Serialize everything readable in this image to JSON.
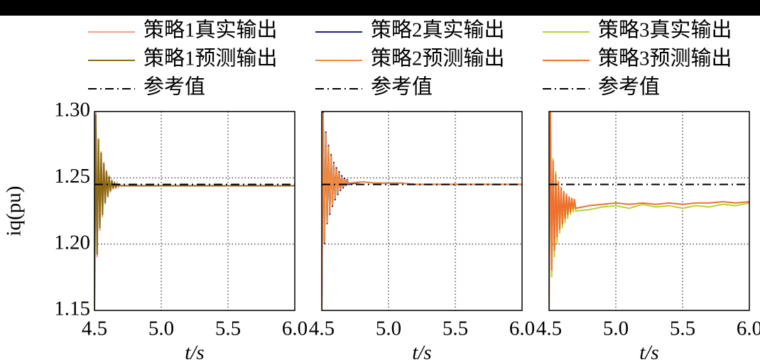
{
  "chart_data": [
    {
      "type": "line",
      "xlabel": "t/s",
      "ylabel": "iq(pu)",
      "x": [
        4.5,
        4.51,
        4.52,
        4.53,
        4.54,
        4.55,
        4.56,
        4.57,
        4.58,
        4.59,
        4.6,
        4.61,
        4.62,
        4.63,
        4.64,
        4.65,
        4.66,
        4.67,
        4.68,
        4.69,
        4.7,
        4.8,
        4.9,
        5.0,
        5.1,
        5.2,
        5.3,
        5.4,
        5.5,
        5.6,
        5.7,
        5.8,
        5.9,
        6.0
      ],
      "series": [
        {
          "name": "策略1真实输出",
          "color": "#f4a090",
          "values": [
            1.15,
            1.3,
            1.19,
            1.28,
            1.21,
            1.27,
            1.22,
            1.262,
            1.23,
            1.256,
            1.235,
            1.252,
            1.239,
            1.249,
            1.241,
            1.247,
            1.242,
            1.246,
            1.243,
            1.245,
            1.244,
            1.244,
            1.244,
            1.244,
            1.244,
            1.244,
            1.244,
            1.244,
            1.244,
            1.244,
            1.244,
            1.244,
            1.244,
            1.244
          ]
        },
        {
          "name": "策略1预测输出",
          "color": "#8b6914",
          "values": [
            1.15,
            1.298,
            1.192,
            1.279,
            1.212,
            1.269,
            1.222,
            1.261,
            1.231,
            1.255,
            1.236,
            1.251,
            1.24,
            1.248,
            1.242,
            1.246,
            1.243,
            1.245,
            1.244,
            1.245,
            1.244,
            1.244,
            1.244,
            1.244,
            1.244,
            1.244,
            1.244,
            1.244,
            1.244,
            1.244,
            1.244,
            1.244,
            1.244,
            1.244
          ]
        }
      ],
      "reference": {
        "name": "参考值",
        "value": 1.245,
        "color": "#000000"
      },
      "xlim": [
        4.5,
        6.0
      ],
      "xticks": [
        4.5,
        {
          "value": 5.0,
          "label": "5.0"
        },
        5.5,
        {
          "value": 6.0,
          "label": "6.0"
        }
      ],
      "ylim": [
        1.15,
        1.3
      ],
      "yticks": [
        1.15,
        {
          "value": 1.2,
          "label": "1.20"
        },
        1.25,
        {
          "value": 1.3,
          "label": "1.30"
        }
      ],
      "grid": true
    },
    {
      "type": "line",
      "xlabel": "t/s",
      "x": [
        4.5,
        4.51,
        4.52,
        4.53,
        4.54,
        4.55,
        4.56,
        4.57,
        4.58,
        4.59,
        4.6,
        4.61,
        4.62,
        4.63,
        4.64,
        4.65,
        4.66,
        4.67,
        4.68,
        4.69,
        4.7,
        4.8,
        4.9,
        5.0,
        5.1,
        5.2,
        5.3,
        5.4,
        5.5,
        5.6,
        5.7,
        5.8,
        5.9,
        6.0
      ],
      "series": [
        {
          "name": "策略2真实输出",
          "color": "#1a237e",
          "values": [
            1.15,
            1.3,
            1.2,
            1.285,
            1.215,
            1.275,
            1.222,
            1.268,
            1.228,
            1.262,
            1.233,
            1.258,
            1.237,
            1.255,
            1.24,
            1.252,
            1.242,
            1.25,
            1.244,
            1.249,
            1.245,
            1.247,
            1.246,
            1.246,
            1.246,
            1.245,
            1.245,
            1.245,
            1.245,
            1.245,
            1.245,
            1.245,
            1.245,
            1.245
          ]
        },
        {
          "name": "策略2预测输出",
          "color": "#f08a40",
          "values": [
            1.15,
            1.299,
            1.201,
            1.284,
            1.216,
            1.274,
            1.223,
            1.267,
            1.229,
            1.261,
            1.234,
            1.257,
            1.238,
            1.254,
            1.241,
            1.251,
            1.243,
            1.249,
            1.245,
            1.248,
            1.246,
            1.247,
            1.246,
            1.246,
            1.246,
            1.245,
            1.245,
            1.245,
            1.245,
            1.245,
            1.245,
            1.245,
            1.245,
            1.245
          ]
        }
      ],
      "reference": {
        "name": "参考值",
        "value": 1.245,
        "color": "#000000"
      },
      "xlim": [
        4.5,
        6.0
      ],
      "xticks": [
        4.5,
        {
          "value": 5.0,
          "label": "5.0"
        },
        5.5,
        {
          "value": 6.0,
          "label": "6.0"
        }
      ],
      "ylim": [
        1.15,
        1.3
      ],
      "yticks": [
        1.15,
        1.2,
        1.25,
        1.3
      ],
      "grid": true
    },
    {
      "type": "line",
      "xlabel": "t/s",
      "x": [
        4.5,
        4.51,
        4.52,
        4.53,
        4.54,
        4.55,
        4.56,
        4.57,
        4.58,
        4.59,
        4.6,
        4.61,
        4.62,
        4.63,
        4.64,
        4.65,
        4.66,
        4.67,
        4.68,
        4.69,
        4.7,
        4.8,
        4.9,
        5.0,
        5.1,
        5.2,
        5.3,
        5.4,
        5.5,
        5.6,
        5.7,
        5.8,
        5.9,
        6.0
      ],
      "series": [
        {
          "name": "策略3真实输出",
          "color": "#b5d334",
          "values": [
            1.15,
            1.3,
            1.175,
            1.265,
            1.19,
            1.255,
            1.2,
            1.248,
            1.208,
            1.243,
            1.212,
            1.24,
            1.216,
            1.237,
            1.219,
            1.235,
            1.222,
            1.233,
            1.224,
            1.232,
            1.225,
            1.226,
            1.228,
            1.229,
            1.227,
            1.23,
            1.228,
            1.229,
            1.227,
            1.229,
            1.228,
            1.23,
            1.229,
            1.231
          ]
        },
        {
          "name": "策略3预测输出",
          "color": "#f07030",
          "values": [
            1.15,
            1.3,
            1.18,
            1.263,
            1.195,
            1.253,
            1.205,
            1.247,
            1.211,
            1.243,
            1.215,
            1.24,
            1.219,
            1.238,
            1.222,
            1.236,
            1.224,
            1.235,
            1.226,
            1.234,
            1.227,
            1.229,
            1.23,
            1.231,
            1.23,
            1.231,
            1.23,
            1.231,
            1.23,
            1.231,
            1.231,
            1.232,
            1.231,
            1.232
          ]
        }
      ],
      "reference": {
        "name": "参考值",
        "value": 1.245,
        "color": "#000000"
      },
      "xlim": [
        4.5,
        6.0
      ],
      "xticks": [
        4.5,
        {
          "value": 5.0,
          "label": "5.0"
        },
        5.5,
        {
          "value": 6.0,
          "label": "6.0"
        }
      ],
      "ylim": [
        1.15,
        1.3
      ],
      "yticks": [
        1.15,
        1.2,
        1.25,
        1.3
      ],
      "grid": true
    }
  ]
}
